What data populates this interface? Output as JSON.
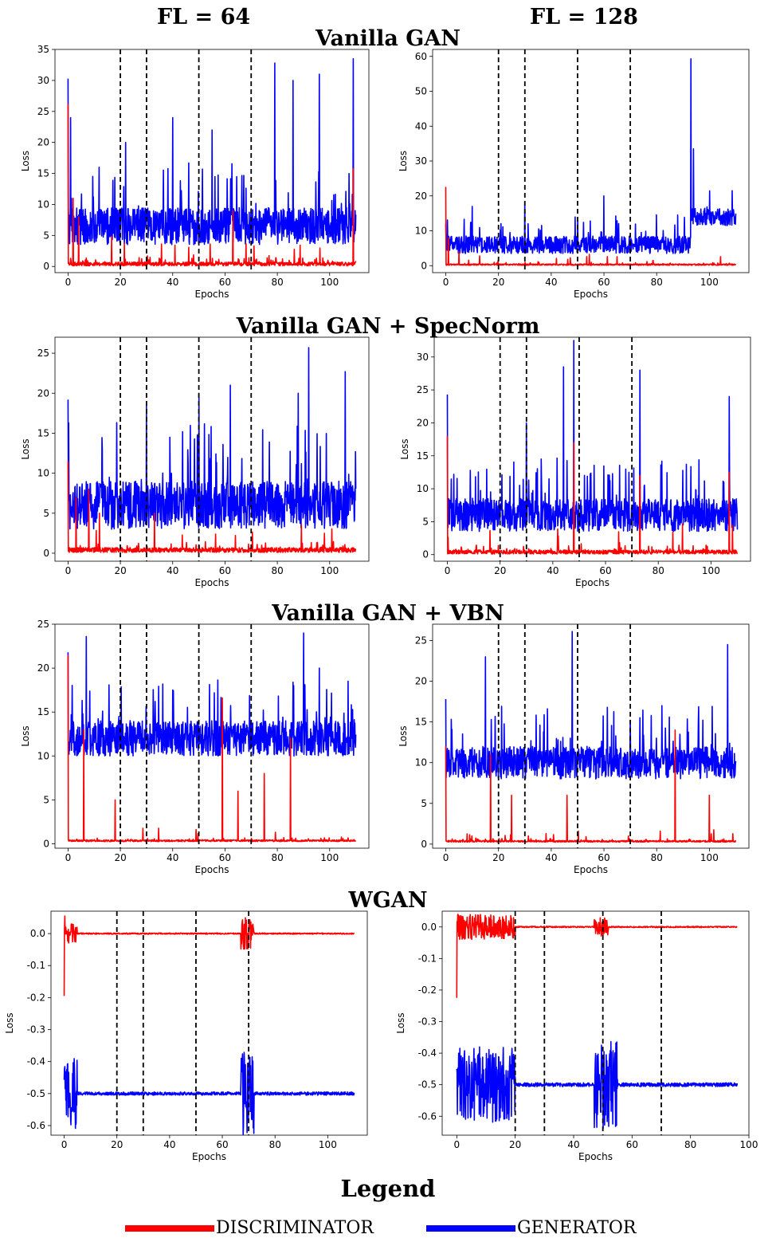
{
  "header": {
    "col_left": "FL = 64",
    "col_right": "FL = 128"
  },
  "rows": [
    {
      "title": "Vanilla GAN"
    },
    {
      "title": "Vanilla GAN + SpecNorm"
    },
    {
      "title": "Vanilla GAN + VBN"
    },
    {
      "title": "WGAN"
    }
  ],
  "legend": {
    "title": "Legend",
    "discriminator_label": "DISCRIMINATOR",
    "generator_label": "GENERATOR",
    "discriminator_color": "#ff0000",
    "generator_color": "#0000ff"
  },
  "chart_data": [
    {
      "type": "line",
      "title": "Vanilla GAN, FL = 64",
      "xlabel": "Epochs",
      "ylabel": "Loss",
      "xlim": [
        -5,
        115
      ],
      "ylim": [
        -1,
        35
      ],
      "xticks": [
        0,
        20,
        40,
        60,
        80,
        100
      ],
      "yticks": [
        0,
        5,
        10,
        15,
        20,
        25,
        30,
        35
      ],
      "vlines": [
        20,
        30,
        50,
        70
      ],
      "series": [
        {
          "name": "GENERATOR",
          "color": "#0000ff",
          "x_end": 110,
          "base": 6.5,
          "noise": 3,
          "spikes": [
            [
              0,
              30.3
            ],
            [
              1,
              24
            ],
            [
              22,
              20
            ],
            [
              40,
              24
            ],
            [
              55,
              22
            ],
            [
              79,
              32.8
            ],
            [
              86,
              30
            ],
            [
              96,
              31
            ],
            [
              109,
              33.5
            ]
          ]
        },
        {
          "name": "DISCRIMINATOR",
          "color": "#ff0000",
          "x_end": 110,
          "base": 0.4,
          "noise": 0.3,
          "spikes": [
            [
              0,
              26.2
            ],
            [
              2,
              11
            ],
            [
              4,
              8
            ],
            [
              63,
              9
            ],
            [
              109,
              15.8
            ]
          ]
        }
      ]
    },
    {
      "type": "line",
      "title": "Vanilla GAN, FL = 128",
      "xlabel": "Epochs",
      "ylabel": "Loss",
      "xlim": [
        -5,
        115
      ],
      "ylim": [
        -2,
        62
      ],
      "xticks": [
        0,
        20,
        40,
        60,
        80,
        100
      ],
      "yticks": [
        0,
        10,
        20,
        30,
        40,
        50,
        60
      ],
      "vlines": [
        20,
        30,
        50,
        70
      ],
      "series": [
        {
          "name": "GENERATOR",
          "color": "#0000ff",
          "x_end": 110,
          "base": 6,
          "noise": 2.5,
          "spikes": [
            [
              0,
              12
            ],
            [
              10,
              17
            ],
            [
              30,
              18
            ],
            [
              60,
              20
            ],
            [
              93,
              59.3
            ],
            [
              94,
              33.5
            ]
          ],
          "late_level": [
            93,
            14
          ]
        },
        {
          "name": "DISCRIMINATOR",
          "color": "#ff0000",
          "x_end": 110,
          "base": 0.3,
          "noise": 0.2,
          "spikes": [
            [
              0,
              22.6
            ],
            [
              1,
              8
            ],
            [
              5,
              4
            ]
          ]
        }
      ]
    },
    {
      "type": "line",
      "title": "Vanilla GAN + SpecNorm, FL = 64",
      "xlabel": "Epochs",
      "ylabel": "Loss",
      "xlim": [
        -5,
        115
      ],
      "ylim": [
        -1,
        27
      ],
      "xticks": [
        0,
        20,
        40,
        60,
        80,
        100
      ],
      "yticks": [
        0,
        5,
        10,
        15,
        20,
        25
      ],
      "vlines": [
        20,
        30,
        50,
        70
      ],
      "series": [
        {
          "name": "GENERATOR",
          "color": "#0000ff",
          "x_end": 110,
          "base": 6,
          "noise": 3,
          "spikes": [
            [
              0,
              19.2
            ],
            [
              30,
              18.5
            ],
            [
              50,
              20
            ],
            [
              62,
              21
            ],
            [
              88,
              20
            ],
            [
              92,
              25.7
            ],
            [
              106,
              22.7
            ]
          ]
        },
        {
          "name": "DISCRIMINATOR",
          "color": "#ff0000",
          "x_end": 110,
          "base": 0.4,
          "noise": 0.3,
          "spikes": [
            [
              0,
              11.5
            ],
            [
              3,
              7
            ],
            [
              8,
              8
            ],
            [
              12,
              5
            ],
            [
              33,
              5
            ]
          ]
        }
      ]
    },
    {
      "type": "line",
      "title": "Vanilla GAN + SpecNorm, FL = 128",
      "xlabel": "Epochs",
      "ylabel": "Loss",
      "xlim": [
        -5,
        115
      ],
      "ylim": [
        -1,
        33
      ],
      "xticks": [
        0,
        20,
        40,
        60,
        80,
        100
      ],
      "yticks": [
        0,
        5,
        10,
        15,
        20,
        25,
        30
      ],
      "vlines": [
        20,
        30,
        50,
        70
      ],
      "series": [
        {
          "name": "GENERATOR",
          "color": "#0000ff",
          "x_end": 110,
          "base": 6,
          "noise": 2.5,
          "spikes": [
            [
              0,
              24.3
            ],
            [
              30,
              20
            ],
            [
              44,
              28.5
            ],
            [
              48,
              32.5
            ],
            [
              73,
              28
            ],
            [
              107,
              24
            ]
          ]
        },
        {
          "name": "DISCRIMINATOR",
          "color": "#ff0000",
          "x_end": 110,
          "base": 0.4,
          "noise": 0.3,
          "spikes": [
            [
              0,
              18
            ],
            [
              48,
              17
            ],
            [
              73,
              12
            ],
            [
              107,
              12.5
            ]
          ]
        }
      ]
    },
    {
      "type": "line",
      "title": "Vanilla GAN + VBN, FL = 64",
      "xlabel": "Epochs",
      "ylabel": "Loss",
      "xlim": [
        -5,
        115
      ],
      "ylim": [
        -0.5,
        25
      ],
      "xticks": [
        0,
        20,
        40,
        60,
        80,
        100
      ],
      "yticks": [
        0,
        5,
        10,
        15,
        20,
        25
      ],
      "vlines": [
        20,
        30,
        50,
        70
      ],
      "series": [
        {
          "name": "GENERATOR",
          "color": "#0000ff",
          "x_end": 110,
          "base": 12,
          "noise": 2,
          "spikes": [
            [
              0,
              21.8
            ],
            [
              7,
              23.6
            ],
            [
              40,
              17.5
            ],
            [
              90,
              24
            ],
            [
              96,
              20
            ]
          ]
        },
        {
          "name": "DISCRIMINATOR",
          "color": "#ff0000",
          "x_end": 110,
          "base": 0.35,
          "noise": 0.1,
          "spikes": [
            [
              0,
              21.5
            ],
            [
              6,
              13
            ],
            [
              18,
              5
            ],
            [
              59,
              16.6
            ],
            [
              65,
              6
            ],
            [
              75,
              8
            ],
            [
              85,
              12
            ]
          ]
        }
      ]
    },
    {
      "type": "line",
      "title": "Vanilla GAN + VBN, FL = 128",
      "xlabel": "Epochs",
      "ylabel": "Loss",
      "xlim": [
        -5,
        115
      ],
      "ylim": [
        -0.5,
        27
      ],
      "xticks": [
        0,
        20,
        40,
        60,
        80,
        100
      ],
      "yticks": [
        0,
        5,
        10,
        15,
        20,
        25
      ],
      "vlines": [
        20,
        30,
        50,
        70
      ],
      "series": [
        {
          "name": "GENERATOR",
          "color": "#0000ff",
          "x_end": 110,
          "base": 10,
          "noise": 2,
          "spikes": [
            [
              0,
              17.8
            ],
            [
              15,
              23
            ],
            [
              48,
              26.1
            ],
            [
              82,
              17
            ],
            [
              107,
              24.5
            ]
          ]
        },
        {
          "name": "DISCRIMINATOR",
          "color": "#ff0000",
          "x_end": 110,
          "base": 0.35,
          "noise": 0.1,
          "spikes": [
            [
              0,
              12
            ],
            [
              17,
              11
            ],
            [
              25,
              6
            ],
            [
              46,
              6
            ],
            [
              87,
              14
            ],
            [
              100,
              6
            ]
          ]
        }
      ]
    },
    {
      "type": "line",
      "title": "WGAN, FL = 64",
      "xlabel": "Epochs",
      "ylabel": "Loss",
      "xlim": [
        -5,
        115
      ],
      "ylim": [
        -0.63,
        0.07
      ],
      "xticks": [
        0,
        20,
        40,
        60,
        80,
        100
      ],
      "yticks": [
        0.0,
        -0.1,
        -0.2,
        -0.3,
        -0.4,
        -0.5,
        -0.6
      ],
      "vlines": [
        20,
        30,
        50,
        70
      ],
      "series": [
        {
          "name": "GENERATOR",
          "color": "#0000ff",
          "x_end": 110,
          "base": -0.5,
          "noise": 0.005,
          "bursts": [
            [
              0,
              5,
              0.11
            ],
            [
              67,
              72,
              0.13
            ]
          ]
        },
        {
          "name": "DISCRIMINATOR",
          "color": "#ff0000",
          "x_end": 110,
          "base": 0.0,
          "noise": 0.002,
          "spikes": [
            [
              0,
              -0.195
            ],
            [
              0.3,
              0.055
            ]
          ],
          "bursts": [
            [
              0,
              5,
              0.03
            ],
            [
              67,
              72,
              0.05
            ]
          ]
        }
      ]
    },
    {
      "type": "line",
      "title": "WGAN, FL = 128",
      "xlabel": "Epochs",
      "ylabel": "Loss",
      "xlim": [
        -5,
        100
      ],
      "ylim": [
        -0.66,
        0.05
      ],
      "xticks": [
        0,
        20,
        40,
        60,
        80,
        100
      ],
      "yticks": [
        0.0,
        -0.1,
        -0.2,
        -0.3,
        -0.4,
        -0.5,
        -0.6
      ],
      "vlines": [
        20,
        30,
        50,
        70
      ],
      "series": [
        {
          "name": "GENERATOR",
          "color": "#0000ff",
          "x_end": 96,
          "base": -0.5,
          "noise": 0.006,
          "bursts": [
            [
              0,
              20,
              0.12
            ],
            [
              47,
              55,
              0.14
            ]
          ]
        },
        {
          "name": "DISCRIMINATOR",
          "color": "#ff0000",
          "x_end": 96,
          "base": 0.0,
          "noise": 0.002,
          "spikes": [
            [
              0,
              -0.225
            ],
            [
              0.3,
              0.04
            ]
          ],
          "bursts": [
            [
              0,
              20,
              0.04
            ],
            [
              47,
              52,
              0.03
            ]
          ]
        }
      ]
    }
  ]
}
